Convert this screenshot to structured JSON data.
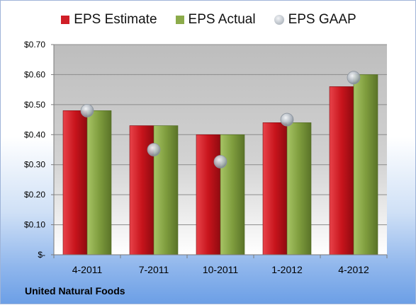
{
  "company": "United Natural Foods",
  "colors": {
    "estimate": "#d01f27",
    "actual": "#8cab4a",
    "gaap": "#b9c0c9"
  },
  "legend": [
    {
      "key": "estimate",
      "label": "EPS Estimate"
    },
    {
      "key": "actual",
      "label": "EPS Actual"
    },
    {
      "key": "gaap",
      "label": "EPS GAAP"
    }
  ],
  "chart_data": {
    "type": "bar",
    "categories": [
      "4-2011",
      "7-2011",
      "10-2011",
      "1-2012",
      "4-2012"
    ],
    "series": [
      {
        "name": "EPS Estimate",
        "values": [
          0.48,
          0.43,
          0.4,
          0.44,
          0.56
        ]
      },
      {
        "name": "EPS Actual",
        "values": [
          0.48,
          0.43,
          0.4,
          0.44,
          0.6
        ]
      },
      {
        "name": "EPS GAAP",
        "type": "scatter",
        "values": [
          0.48,
          0.35,
          0.31,
          0.45,
          0.59
        ]
      }
    ],
    "ylim": [
      0,
      0.7
    ],
    "yticks": [
      0,
      0.1,
      0.2,
      0.3,
      0.4,
      0.5,
      0.6,
      0.7
    ],
    "ytick_labels": [
      "$-",
      "$0.10",
      "$0.20",
      "$0.30",
      "$0.40",
      "$0.50",
      "$0.60",
      "$0.70"
    ],
    "grid": true,
    "legend_position": "top"
  }
}
